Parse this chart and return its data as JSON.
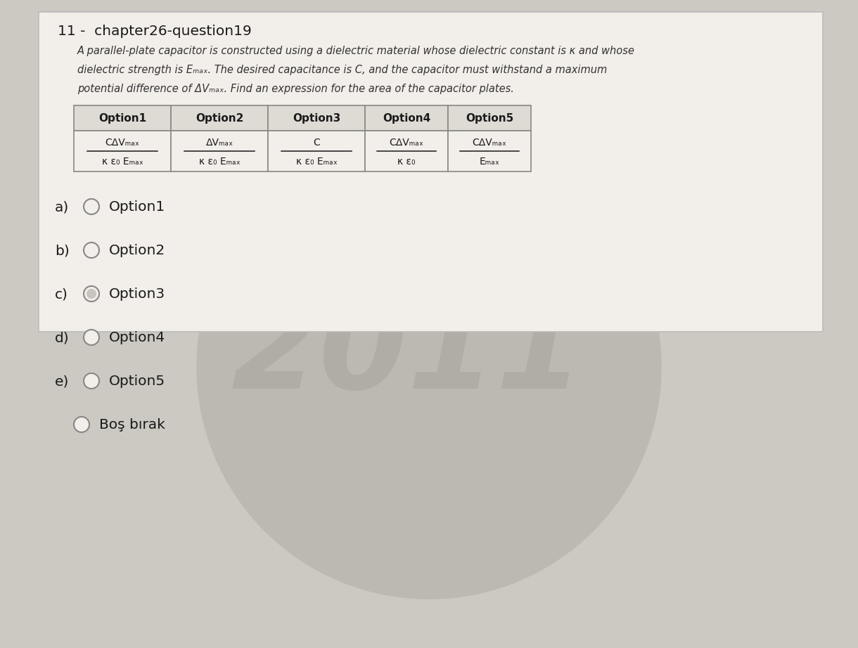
{
  "title": "11 -  chapter26-question19",
  "desc_line1": "A parallel-plate capacitor is constructed using a dielectric material whose dielectric constant is κ and whose",
  "desc_line2": "dielectric strength is Eₘₐₓ. The desired capacitance is C, and the capacitor must withstand a maximum",
  "desc_line3": "potential difference of ΔVₘₐₓ. Find an expression for the area of the capacitor plates.",
  "table_headers": [
    "Option1",
    "Option2",
    "Option3",
    "Option4",
    "Option5"
  ],
  "options_num": [
    "CΔVₘₐₓ",
    "ΔVₘₐₓ",
    "C",
    "CΔVₘₐₓ",
    "CΔVₘₐₓ"
  ],
  "options_den": [
    "κ ε₀ Eₘₐₓ",
    "κ ε₀ Eₘₐₓ",
    "κ ε₀ Eₘₐₓ",
    "κ ε₀",
    "Eₘₐₓ"
  ],
  "choices": [
    "Option1",
    "Option2",
    "Option3",
    "Option4",
    "Option5"
  ],
  "choice_labels": [
    "a)",
    "b)",
    "c)",
    "d)",
    "e)"
  ],
  "bos_birak": "Boş bırak",
  "watermark": "2011",
  "bg_color": "#ccc9c2",
  "card_color": "#f2eeea",
  "circle_color": "#bcb9b2",
  "table_header_color": "#dedad4",
  "table_cell_color": "#f2eeea",
  "text_color": "#1a1a1a",
  "border_color": "#888880"
}
